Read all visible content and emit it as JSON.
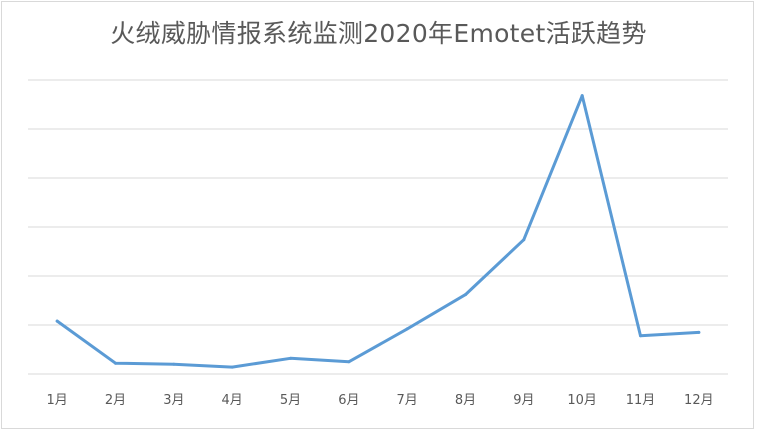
{
  "chart_data": {
    "type": "line",
    "title": "火绒威胁情报系统监测2020年Emotet活跃趋势",
    "categories": [
      "1月",
      "2月",
      "3月",
      "4月",
      "5月",
      "6月",
      "7月",
      "8月",
      "9月",
      "10月",
      "11月",
      "12月"
    ],
    "series": [
      {
        "values": [
          1.08,
          0.22,
          0.2,
          0.14,
          0.32,
          0.25,
          0.92,
          1.62,
          2.74,
          5.68,
          0.78,
          0.85
        ],
        "color": "#5b9bd5"
      }
    ],
    "ylim": [
      0,
      6
    ],
    "y_gridlines": [
      0,
      1,
      2,
      3,
      4,
      5,
      6
    ],
    "y_tick_labels": "none",
    "grid": true,
    "legend": "none"
  }
}
